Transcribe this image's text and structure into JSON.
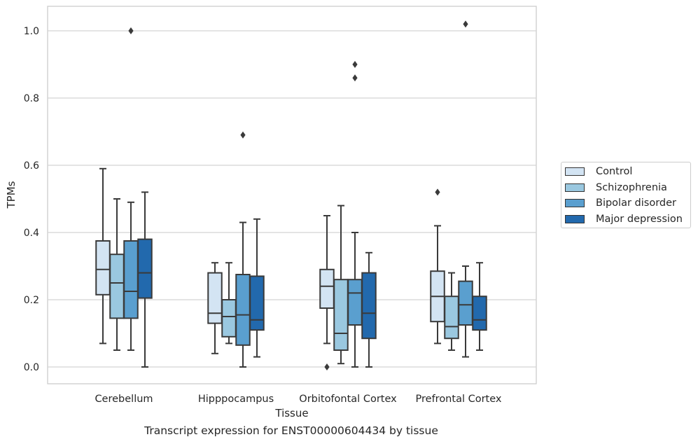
{
  "caption": "Transcript expression for ENST00000604434 by tissue",
  "chart_data": {
    "type": "boxplot",
    "xlabel": "Tissue",
    "ylabel": "TPMs",
    "ylim": [
      -0.05,
      1.07
    ],
    "yticks": [
      "0.0",
      "0.2",
      "0.4",
      "0.6",
      "0.8",
      "1.0"
    ],
    "grid": "horizontal",
    "legend_position": "right",
    "categories": [
      "Cerebellum",
      "Hipppocampus",
      "Orbitofontal Cortex",
      "Prefrontal Cortex"
    ],
    "series": [
      {
        "name": "Control",
        "color": "#d3e4f3",
        "boxes": [
          {
            "whisker_low": 0.07,
            "q1": 0.215,
            "median": 0.29,
            "q3": 0.375,
            "whisker_high": 0.59,
            "outliers": []
          },
          {
            "whisker_low": 0.04,
            "q1": 0.13,
            "median": 0.16,
            "q3": 0.28,
            "whisker_high": 0.31,
            "outliers": []
          },
          {
            "whisker_low": 0.07,
            "q1": 0.175,
            "median": 0.24,
            "q3": 0.29,
            "whisker_high": 0.45,
            "outliers": [
              0.0
            ]
          },
          {
            "whisker_low": 0.07,
            "q1": 0.135,
            "median": 0.21,
            "q3": 0.285,
            "whisker_high": 0.42,
            "outliers": [
              0.52
            ]
          }
        ]
      },
      {
        "name": "Schizophrenia",
        "color": "#9ac8e0",
        "boxes": [
          {
            "whisker_low": 0.05,
            "q1": 0.145,
            "median": 0.25,
            "q3": 0.335,
            "whisker_high": 0.5,
            "outliers": []
          },
          {
            "whisker_low": 0.07,
            "q1": 0.09,
            "median": 0.15,
            "q3": 0.2,
            "whisker_high": 0.31,
            "outliers": []
          },
          {
            "whisker_low": 0.01,
            "q1": 0.05,
            "median": 0.1,
            "q3": 0.26,
            "whisker_high": 0.48,
            "outliers": []
          },
          {
            "whisker_low": 0.05,
            "q1": 0.085,
            "median": 0.12,
            "q3": 0.21,
            "whisker_high": 0.28,
            "outliers": []
          }
        ]
      },
      {
        "name": "Bipolar disorder",
        "color": "#5a9fcf",
        "boxes": [
          {
            "whisker_low": 0.05,
            "q1": 0.145,
            "median": 0.225,
            "q3": 0.375,
            "whisker_high": 0.49,
            "outliers": [
              1.0
            ]
          },
          {
            "whisker_low": 0.0,
            "q1": 0.065,
            "median": 0.155,
            "q3": 0.275,
            "whisker_high": 0.43,
            "outliers": [
              0.69
            ]
          },
          {
            "whisker_low": 0.0,
            "q1": 0.125,
            "median": 0.22,
            "q3": 0.26,
            "whisker_high": 0.4,
            "outliers": [
              0.86,
              0.9
            ]
          },
          {
            "whisker_low": 0.03,
            "q1": 0.125,
            "median": 0.185,
            "q3": 0.255,
            "whisker_high": 0.3,
            "outliers": [
              1.02
            ]
          }
        ]
      },
      {
        "name": "Major depression",
        "color": "#2269ad",
        "boxes": [
          {
            "whisker_low": 0.0,
            "q1": 0.205,
            "median": 0.28,
            "q3": 0.38,
            "whisker_high": 0.52,
            "outliers": []
          },
          {
            "whisker_low": 0.03,
            "q1": 0.11,
            "median": 0.14,
            "q3": 0.27,
            "whisker_high": 0.44,
            "outliers": []
          },
          {
            "whisker_low": 0.0,
            "q1": 0.085,
            "median": 0.16,
            "q3": 0.28,
            "whisker_high": 0.34,
            "outliers": []
          },
          {
            "whisker_low": 0.05,
            "q1": 0.11,
            "median": 0.14,
            "q3": 0.21,
            "whisker_high": 0.31,
            "outliers": []
          }
        ]
      }
    ]
  }
}
